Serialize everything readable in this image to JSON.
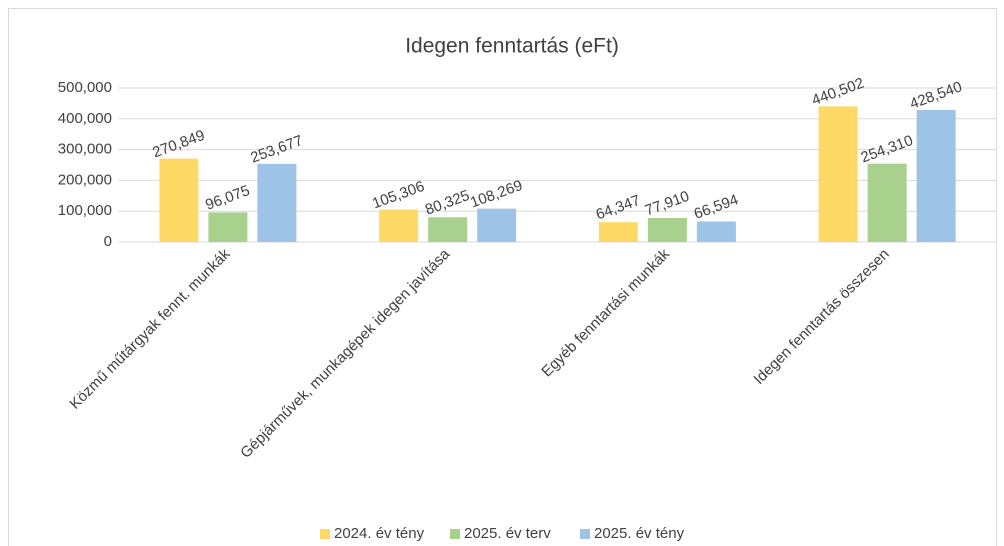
{
  "chart_data": {
    "type": "bar",
    "title": "Idegen fenntartás (eFt)",
    "categories": [
      "Közmű műtárgyak fennt. munkák",
      "Gépjárművek, munkagépek idegen javítása",
      "Egyéb fenntartási munkák",
      "Idegen fenntartás összesen"
    ],
    "series": [
      {
        "name": "2024. év tény",
        "color": "#ffd966",
        "values": [
          270849,
          105306,
          64347,
          440502
        ],
        "value_labels": [
          "270,849",
          "105,306",
          "64,347",
          "440,502"
        ]
      },
      {
        "name": "2025. év terv",
        "color": "#a9d18e",
        "values": [
          96075,
          80325,
          77910,
          254310
        ],
        "value_labels": [
          "96,075",
          "80,325",
          "77,910",
          "254,310"
        ]
      },
      {
        "name": "2025. év tény",
        "color": "#9dc3e6",
        "values": [
          253677,
          108269,
          66594,
          428540
        ],
        "value_labels": [
          "253,677",
          "108,269",
          "66,594",
          "428,540"
        ]
      }
    ],
    "ylim": [
      0,
      500000
    ],
    "yticks": [
      0,
      {
        "value": 100000,
        "label": "100,000"
      },
      {
        "value": 200000,
        "label": "200,000"
      },
      {
        "value": 300000,
        "label": "300,000"
      },
      {
        "value": 400000,
        "label": "400,000"
      },
      {
        "value": 500000,
        "label": "500,000"
      }
    ],
    "grid": true,
    "legend": "bottom"
  }
}
